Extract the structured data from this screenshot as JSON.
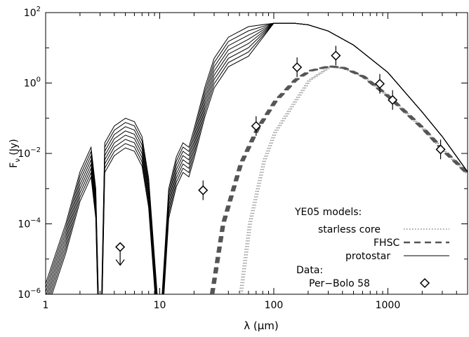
{
  "chart_data": {
    "type": "line",
    "xlabel": "λ (μm)",
    "ylabel": "Fν (Jy)",
    "ylabel_main": "F",
    "ylabel_sub": "ν",
    "ylabel_unit": " (Jy)",
    "x_scale": "log",
    "y_scale": "log",
    "xlim": [
      1,
      5000
    ],
    "ylim": [
      1e-06,
      100
    ],
    "x_ticks": [
      {
        "value": 1,
        "label": "1"
      },
      {
        "value": 10,
        "label": "10"
      },
      {
        "value": 100,
        "label": "100"
      },
      {
        "value": 1000,
        "label": "1000"
      }
    ],
    "y_ticks": [
      {
        "value": 1e-06,
        "base": "10",
        "exp": "−6"
      },
      {
        "value": 0.0001,
        "base": "10",
        "exp": "−4"
      },
      {
        "value": 0.01,
        "base": "10",
        "exp": "−2"
      },
      {
        "value": 1,
        "base": "10",
        "exp": "0"
      },
      {
        "value": 100,
        "base": "10",
        "exp": "2"
      }
    ],
    "grid": false,
    "legend_position": "bottom-right",
    "legend": {
      "models_title": "YE05 models:",
      "starless_label": "starless core",
      "fhsc_label": "FHSC",
      "protostar_label": "protostar",
      "data_title": "Data:",
      "data_label": "Per−Bolo 58"
    },
    "series": [
      {
        "style": "dotted",
        "points": [
          [
            50,
            1e-06
          ],
          [
            60,
            0.0001
          ],
          [
            80,
            0.006
          ],
          [
            100,
            0.04
          ],
          [
            150,
            0.3
          ],
          [
            200,
            1.2
          ],
          [
            300,
            2.8
          ],
          [
            400,
            2.6
          ],
          [
            600,
            1.5
          ],
          [
            1000,
            0.4
          ],
          [
            2000,
            0.05
          ],
          [
            3000,
            0.012
          ],
          [
            5000,
            0.0025
          ]
        ]
      },
      {
        "style": "dashed",
        "points": [
          [
            28,
            1e-06
          ],
          [
            35,
            0.0001
          ],
          [
            50,
            0.005
          ],
          [
            70,
            0.05
          ],
          [
            100,
            0.3
          ],
          [
            150,
            1.2
          ],
          [
            200,
            2.2
          ],
          [
            300,
            3.0
          ],
          [
            400,
            2.7
          ],
          [
            600,
            1.5
          ],
          [
            1000,
            0.4
          ],
          [
            2000,
            0.05
          ],
          [
            3000,
            0.012
          ],
          [
            5000,
            0.0025
          ]
        ]
      },
      {
        "style": "solid",
        "points": [
          [
            1,
            2e-06
          ],
          [
            1.5,
            0.0001
          ],
          [
            2,
            0.003
          ],
          [
            2.5,
            0.015
          ],
          [
            2.75,
            0.001
          ],
          [
            2.9,
            1e-06
          ],
          [
            3.1,
            1e-06
          ],
          [
            3.3,
            0.02
          ],
          [
            4,
            0.06
          ],
          [
            5,
            0.1
          ],
          [
            6,
            0.08
          ],
          [
            7,
            0.03
          ],
          [
            8,
            0.002
          ],
          [
            9.5,
            1e-06
          ],
          [
            10.5,
            1e-06
          ],
          [
            12,
            0.001
          ],
          [
            14,
            0.008
          ],
          [
            16,
            0.02
          ],
          [
            18,
            0.015
          ],
          [
            20,
            0.05
          ],
          [
            25,
            0.8
          ],
          [
            30,
            5
          ],
          [
            40,
            20
          ],
          [
            60,
            40
          ],
          [
            100,
            50
          ],
          [
            150,
            50
          ],
          [
            200,
            45
          ],
          [
            300,
            30
          ],
          [
            500,
            12
          ],
          [
            1000,
            2
          ],
          [
            2000,
            0.15
          ],
          [
            3000,
            0.03
          ],
          [
            5000,
            0.003
          ]
        ]
      }
    ],
    "data_points": [
      {
        "x": 4.5,
        "y": 2.2e-05,
        "upper_limit": true
      },
      {
        "x": 24,
        "y": 0.0009
      },
      {
        "x": 70,
        "y": 0.06
      },
      {
        "x": 160,
        "y": 2.8
      },
      {
        "x": 350,
        "y": 6.0
      },
      {
        "x": 850,
        "y": 0.95
      },
      {
        "x": 1100,
        "y": 0.33
      },
      {
        "x": 2900,
        "y": 0.013
      }
    ]
  }
}
